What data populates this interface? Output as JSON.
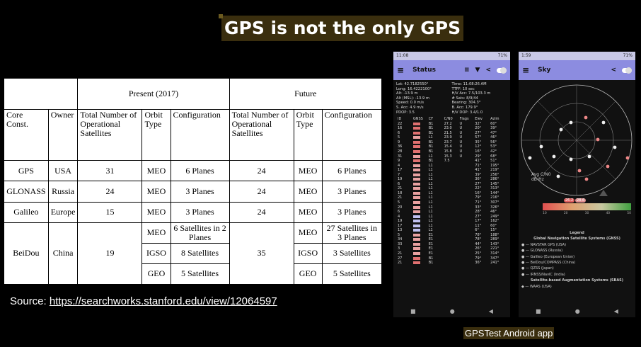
{
  "slide_title": "GPS is not the only GPS",
  "table": {
    "group_present": "Present (2017)",
    "group_future": "Future",
    "h_core": "Core Const.",
    "h_owner": "Owner",
    "h_total": "Total Number of Operational Satellites",
    "h_orbit": "Orbit Type",
    "h_config": "Configuration",
    "rows": [
      [
        "GPS",
        "USA",
        "31",
        "MEO",
        "6 Planes",
        "24",
        "MEO",
        "6 Planes"
      ],
      [
        "GLONASS",
        "Russia",
        "24",
        "MEO",
        "3 Planes",
        "24",
        "MEO",
        "3 Planes"
      ],
      [
        "Galileo",
        "Europe",
        "15",
        "MEO",
        "3 Planes",
        "24",
        "MEO",
        "3 Planes"
      ]
    ],
    "beidou": {
      "name": "BeiDou",
      "owner": "China",
      "total": "19",
      "future_total": "35",
      "sub": [
        [
          "MEO",
          "6 Satellites in 2 Planes",
          "MEO",
          "27 Satellites in 3 Planes"
        ],
        [
          "IGSO",
          "8 Satellites",
          "IGSO",
          "3 Satellites"
        ],
        [
          "GEO",
          "5 Satellites",
          "GEO",
          "5 Satellites"
        ]
      ]
    }
  },
  "source_label": "Source: ",
  "source_url": "https://searchworks.stanford.edu/view/12064597",
  "phone1": {
    "time": "11:08",
    "battery": "71%",
    "title": "Status",
    "info_left": [
      "Lat: 42.7182550°",
      "Long: 16.4222100°",
      "Alt: -13.9 m",
      "Alt (MSL): -13.9 m",
      "Speed: 0.0 m/s",
      "S. Acc: 4.9 m/s",
      "PDOP: 3.5"
    ],
    "info_right": [
      "Time: 11:08:26 AM",
      "TTFF: 10 sec",
      "H/V Acc: 7.5/103.3 m",
      "# Sats: 8/9/44",
      "Bearing: 304.3°",
      "B. Acc: 179.9°",
      "H/V DOP: 3.4/1.0"
    ],
    "headers": [
      "ID",
      "GNSS",
      "CF",
      "C/N0",
      "Flags",
      "Elev",
      "Azim"
    ],
    "rows": [
      [
        "22",
        "",
        "B1",
        "27.2",
        "U",
        "32°",
        "60°"
      ],
      [
        "16",
        "",
        "B1",
        "23.0",
        "U",
        "20°",
        "39°"
      ],
      [
        "6",
        "",
        "B1",
        "21.5",
        "U",
        "27°",
        "47°"
      ],
      [
        "5",
        "",
        "L1",
        "23.9",
        "U",
        "57°",
        "46°"
      ],
      [
        "9",
        "",
        "B1",
        "23.7",
        "U",
        "35°",
        "56°"
      ],
      [
        "36",
        "",
        "B1",
        "15.4",
        "U",
        "12°",
        "53°"
      ],
      [
        "28",
        "",
        "B1",
        "15.8",
        "U",
        "16°",
        "42°"
      ],
      [
        "31",
        "",
        "L1",
        "15.3",
        "U",
        "29°",
        "68°"
      ],
      [
        "9",
        "",
        "B1",
        "7.5",
        "",
        "41°",
        "51°"
      ],
      [
        "4",
        "",
        "L1",
        "",
        "",
        "71°",
        "195°"
      ],
      [
        "17",
        "",
        "L1",
        "",
        "",
        "41°",
        "219°"
      ],
      [
        "7",
        "",
        "L1",
        "",
        "",
        "39°",
        "256°"
      ],
      [
        "19",
        "",
        "L1",
        "",
        "",
        "36°",
        "286°"
      ],
      [
        "6",
        "",
        "L1",
        "",
        "",
        "27°",
        "145°"
      ],
      [
        "21",
        "",
        "L1",
        "",
        "",
        "22°",
        "313°"
      ],
      [
        "18",
        "",
        "L1",
        "",
        "",
        "16°",
        "144°"
      ],
      [
        "21",
        "",
        "L1",
        "",
        "",
        "79°",
        "216°"
      ],
      [
        "5",
        "",
        "L1",
        "",
        "",
        "71°",
        "307°"
      ],
      [
        "20",
        "",
        "L1",
        "",
        "",
        "33°",
        "326°"
      ],
      [
        "6",
        "",
        "L1",
        "",
        "",
        "28°",
        "46°"
      ],
      [
        "4",
        "",
        "L1",
        "",
        "",
        "27°",
        "249°"
      ],
      [
        "19",
        "",
        "L1",
        "",
        "",
        "17°",
        "162°"
      ],
      [
        "17",
        "",
        "L1",
        "",
        "",
        "11°",
        "60°"
      ],
      [
        "13",
        "",
        "L1",
        "",
        "",
        "6°",
        "15°"
      ],
      [
        "5",
        "",
        "E1",
        "",
        "",
        "78°",
        "188°"
      ],
      [
        "34",
        "",
        "E1",
        "",
        "",
        "78°",
        "289°"
      ],
      [
        "33",
        "",
        "E1",
        "",
        "",
        "44°",
        "143°"
      ],
      [
        "3",
        "",
        "E1",
        "",
        "",
        "26°",
        "221°"
      ],
      [
        "21",
        "",
        "E1",
        "",
        "",
        "25°",
        "314°"
      ],
      [
        "27",
        "",
        "B1",
        "",
        "",
        "79°",
        "347°"
      ],
      [
        "21",
        "",
        "B1",
        "",
        "",
        "36°",
        "241°"
      ]
    ]
  },
  "phone2": {
    "time": "1:59",
    "battery": "71%",
    "title": "Sky",
    "cn_label": "Avg C/N0",
    "cn_unit": "dB-Hz",
    "cn_ticks": [
      "10",
      "20",
      "30",
      "40",
      "50"
    ],
    "cn_avg": "26.2",
    "cn_max": "28.6",
    "legend_title": "Legend",
    "gnss_title": "Global Navigation Satellite Systems (GNSS)",
    "gnss": [
      "NAVSTAR GPS (USA)",
      "GLONASS (Russia)",
      "Galileo (European Union)",
      "BeiDou/COMPASS (China)",
      "QZSS (Japan)",
      "IRNSS/NavIC (India)"
    ],
    "sbas_title": "Satellite-based Augmentation Systems (SBAS)",
    "sbas": [
      "WAAS (USA)"
    ]
  },
  "caption": "GPSTest Android app"
}
